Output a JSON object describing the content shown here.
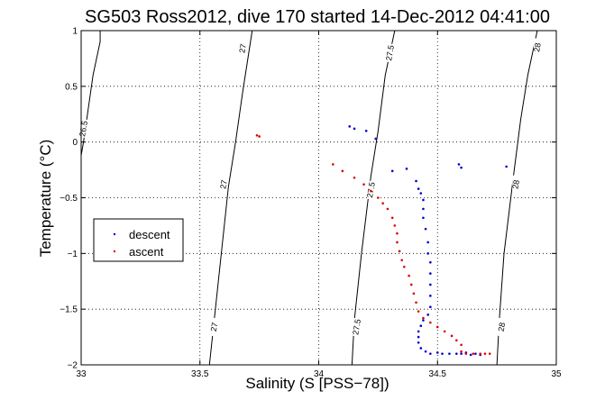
{
  "chart_data": {
    "type": "scatter",
    "title": "SG503 Ross2012, dive 170 started 14-Dec-2012 04:41:00",
    "xlabel": "Salinity (S [PSS−78])",
    "ylabel": "Temperature (°C)",
    "xlim": [
      33,
      35
    ],
    "ylim": [
      -2,
      1
    ],
    "xticks": [
      33,
      33.5,
      34,
      34.5,
      35
    ],
    "xtick_labels": [
      "33",
      "33.5",
      "34",
      "34.5",
      "35"
    ],
    "yticks": [
      -2,
      -1.5,
      -1,
      -0.5,
      0,
      0.5,
      1
    ],
    "ytick_labels": [
      "−2",
      "−1.5",
      "−1",
      "−0.5",
      "0",
      "0.5",
      "1"
    ],
    "grid": true,
    "legend_position": "left-middle",
    "colors": {
      "descent": "#0000cc",
      "ascent": "#dd0000",
      "contour": "#000000"
    },
    "series": [
      {
        "name": "descent",
        "points": [
          [
            34.13,
            0.14
          ],
          [
            34.15,
            0.12
          ],
          [
            34.2,
            0.1
          ],
          [
            34.24,
            0.03
          ],
          [
            34.31,
            -0.26
          ],
          [
            34.37,
            -0.24
          ],
          [
            34.41,
            -0.35
          ],
          [
            34.42,
            -0.42
          ],
          [
            34.43,
            -0.46
          ],
          [
            34.44,
            -0.52
          ],
          [
            34.44,
            -0.6
          ],
          [
            34.44,
            -0.68
          ],
          [
            34.45,
            -0.78
          ],
          [
            34.46,
            -0.9
          ],
          [
            34.46,
            -1.0
          ],
          [
            34.47,
            -1.08
          ],
          [
            34.47,
            -1.18
          ],
          [
            34.47,
            -1.28
          ],
          [
            34.47,
            -1.38
          ],
          [
            34.47,
            -1.48
          ],
          [
            34.46,
            -1.55
          ],
          [
            34.44,
            -1.6
          ],
          [
            34.43,
            -1.65
          ],
          [
            34.42,
            -1.7
          ],
          [
            34.42,
            -1.75
          ],
          [
            34.42,
            -1.8
          ],
          [
            34.43,
            -1.85
          ],
          [
            34.45,
            -1.88
          ],
          [
            34.47,
            -1.9
          ],
          [
            34.5,
            -1.89
          ],
          [
            34.52,
            -1.9
          ],
          [
            34.55,
            -1.9
          ],
          [
            34.58,
            -1.9
          ],
          [
            34.6,
            -1.9
          ],
          [
            34.62,
            -1.89
          ],
          [
            34.64,
            -1.91
          ],
          [
            34.66,
            -1.9
          ],
          [
            34.68,
            -1.91
          ],
          [
            34.59,
            -0.2
          ],
          [
            34.6,
            -0.23
          ],
          [
            34.79,
            -0.22
          ]
        ]
      },
      {
        "name": "ascent",
        "points": [
          [
            33.74,
            0.06
          ],
          [
            33.75,
            0.05
          ],
          [
            34.06,
            -0.2
          ],
          [
            34.1,
            -0.26
          ],
          [
            34.15,
            -0.32
          ],
          [
            34.19,
            -0.38
          ],
          [
            34.22,
            -0.44
          ],
          [
            34.25,
            -0.5
          ],
          [
            34.27,
            -0.55
          ],
          [
            34.29,
            -0.6
          ],
          [
            34.31,
            -0.68
          ],
          [
            34.32,
            -0.75
          ],
          [
            34.33,
            -0.82
          ],
          [
            34.33,
            -0.9
          ],
          [
            34.34,
            -0.98
          ],
          [
            34.35,
            -1.06
          ],
          [
            34.36,
            -1.12
          ],
          [
            34.38,
            -1.2
          ],
          [
            34.39,
            -1.28
          ],
          [
            34.4,
            -1.36
          ],
          [
            34.41,
            -1.44
          ],
          [
            34.42,
            -1.52
          ],
          [
            34.44,
            -1.58
          ],
          [
            34.47,
            -1.62
          ],
          [
            34.5,
            -1.66
          ],
          [
            34.53,
            -1.7
          ],
          [
            34.56,
            -1.74
          ],
          [
            34.58,
            -1.78
          ],
          [
            34.6,
            -1.82
          ],
          [
            34.6,
            -1.88
          ],
          [
            34.62,
            -1.9
          ],
          [
            34.65,
            -1.9
          ],
          [
            34.68,
            -1.9
          ],
          [
            34.7,
            -1.9
          ],
          [
            34.72,
            -1.9
          ]
        ]
      }
    ],
    "contours": [
      {
        "label": "26.5",
        "line": [
          [
            33.0,
            -0.12
          ],
          [
            33.01,
            0.0
          ],
          [
            33.03,
            0.3
          ],
          [
            33.05,
            0.6
          ],
          [
            33.08,
            0.9
          ],
          [
            33.08,
            1.0
          ]
        ],
        "label_at": [
          33.01,
          0.12
        ]
      },
      {
        "label": "27",
        "line": [
          [
            33.54,
            -2.0
          ],
          [
            33.56,
            -1.6
          ],
          [
            33.59,
            -1.0
          ],
          [
            33.62,
            -0.4
          ],
          [
            33.65,
            0.0
          ],
          [
            33.68,
            0.45
          ],
          [
            33.72,
            1.0
          ]
        ],
        "label_at_list": [
          [
            33.56,
            -1.66
          ],
          [
            33.6,
            -0.38
          ],
          [
            33.68,
            0.84
          ]
        ]
      },
      {
        "label": "27.5",
        "line": [
          [
            34.14,
            -2.0
          ],
          [
            34.15,
            -1.6
          ],
          [
            34.18,
            -1.0
          ],
          [
            34.22,
            -0.3
          ],
          [
            34.25,
            0.1
          ],
          [
            34.28,
            0.6
          ],
          [
            34.32,
            1.0
          ]
        ],
        "label_at_list": [
          [
            34.16,
            -1.66
          ],
          [
            34.22,
            -0.43
          ],
          [
            34.3,
            0.8
          ]
        ]
      },
      {
        "label": "28",
        "line": [
          [
            34.75,
            -2.0
          ],
          [
            34.76,
            -1.6
          ],
          [
            34.78,
            -1.0
          ],
          [
            34.82,
            -0.3
          ],
          [
            34.85,
            0.2
          ],
          [
            34.88,
            0.6
          ],
          [
            34.92,
            1.0
          ]
        ],
        "label_at_list": [
          [
            34.77,
            -1.66
          ],
          [
            34.83,
            -0.38
          ],
          [
            34.92,
            0.85
          ]
        ]
      }
    ]
  }
}
